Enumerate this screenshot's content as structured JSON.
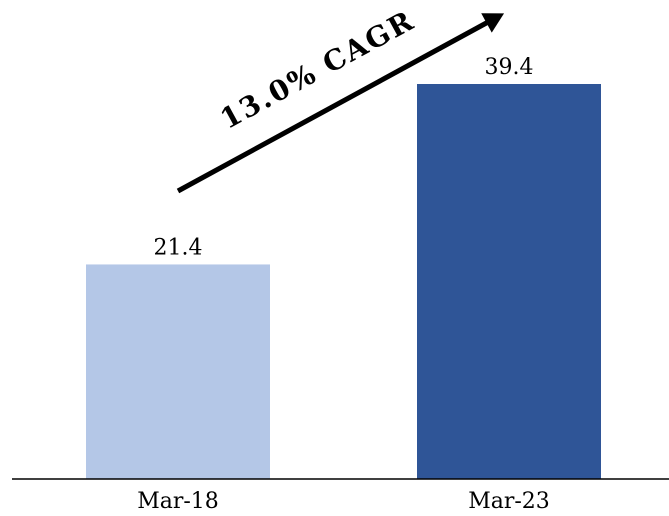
{
  "chart_data": {
    "type": "bar",
    "categories": [
      "Mar-18",
      "Mar-23"
    ],
    "values": [
      21.4,
      39.4
    ],
    "value_labels": [
      "21.4",
      "39.4"
    ],
    "bar_colors": [
      "#b4c7e7",
      "#2f5597"
    ],
    "axis_color": "#000000",
    "ylim": [
      0,
      39.4
    ],
    "grid": false,
    "legend": "none",
    "title": "",
    "xlabel": "",
    "ylabel": "",
    "annotation": {
      "text": "13.0% CAGR",
      "arrow": "up-right",
      "color": "#000000"
    }
  }
}
